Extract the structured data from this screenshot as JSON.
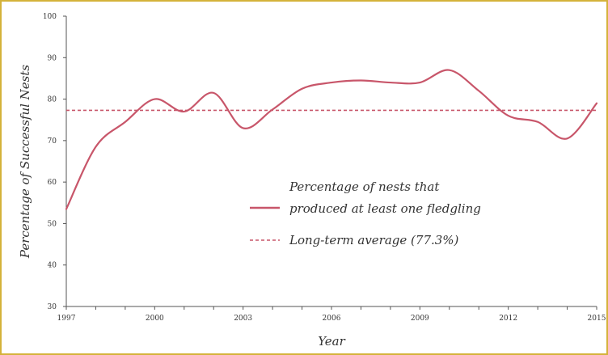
{
  "chart_data": {
    "type": "line",
    "xlabel": "Year",
    "ylabel": "Percentage of Successful Nests",
    "xlim": [
      1997,
      2015
    ],
    "ylim": [
      30,
      100
    ],
    "x_ticks": [
      1997,
      2000,
      2003,
      2006,
      2009,
      2012,
      2015
    ],
    "y_ticks": [
      30,
      40,
      50,
      60,
      70,
      80,
      90,
      100
    ],
    "grid": false,
    "legend_position": "center",
    "series": [
      {
        "name": "Percentage of nests that produced at least one fledgling",
        "name_lines": [
          "Percentage of nests that",
          "produced at least one fledgling"
        ],
        "style": "solid",
        "color": "#c8566a",
        "x": [
          1997,
          1998,
          1999,
          2000,
          2001,
          2002,
          2003,
          2004,
          2005,
          2006,
          2007,
          2008,
          2009,
          2010,
          2011,
          2012,
          2013,
          2014,
          2015
        ],
        "y": [
          53.5,
          68.5,
          74.5,
          80,
          77,
          81.5,
          73,
          77.5,
          82.5,
          84,
          84.5,
          84,
          84,
          87,
          82,
          76,
          74.5,
          70.5,
          79
        ]
      },
      {
        "name": "Long-term average (77.3%)",
        "style": "dashed",
        "color": "#c8566a",
        "value": 77.3
      }
    ]
  }
}
